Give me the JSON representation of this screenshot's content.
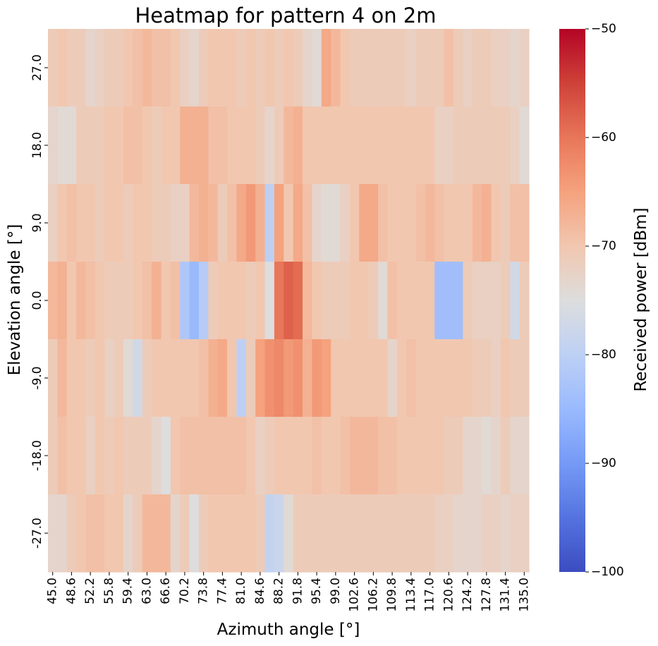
{
  "chart_data": {
    "type": "heatmap",
    "title": "Heatmap for pattern 4 on 2m",
    "xlabel": "Azimuth angle [°]",
    "ylabel": "Elevation angle [°]",
    "colorbar_label": "Received power [dBm]",
    "colormap": "coolwarm",
    "vmin": -100,
    "vmax": -50,
    "colorbar_ticks": [
      "−50",
      "−60",
      "−70",
      "−80",
      "−90",
      "−100"
    ],
    "colorbar_tick_values": [
      -50,
      -60,
      -70,
      -80,
      -90,
      -100
    ],
    "x_tick_labels": [
      "45.0",
      "48.6",
      "52.2",
      "55.8",
      "59.4",
      "63.0",
      "66.6",
      "70.2",
      "73.8",
      "77.4",
      "81.0",
      "84.6",
      "88.2",
      "91.8",
      "95.4",
      "99.0",
      "102.6",
      "106.2",
      "109.8",
      "113.4",
      "117.0",
      "120.6",
      "124.2",
      "127.8",
      "131.4",
      "135.0"
    ],
    "y_tick_labels": [
      "27.0",
      "18.0",
      "9.0",
      "0.0",
      "-9.0",
      "-18.0",
      "-27.0"
    ],
    "azimuth": [
      45.0,
      46.8,
      48.6,
      50.4,
      52.2,
      54.0,
      55.8,
      57.6,
      59.4,
      61.2,
      63.0,
      64.8,
      66.6,
      68.4,
      70.2,
      72.0,
      73.8,
      75.6,
      77.4,
      79.2,
      81.0,
      82.8,
      84.6,
      86.4,
      88.2,
      90.0,
      91.8,
      93.6,
      95.4,
      97.2,
      99.0,
      100.8,
      102.6,
      104.4,
      106.2,
      108.0,
      109.8,
      111.6,
      113.4,
      115.2,
      117.0,
      118.8,
      120.6,
      122.4,
      124.2,
      126.0,
      127.8,
      129.6,
      131.4,
      133.2,
      135.0
    ],
    "elevation": [
      27.0,
      18.0,
      9.0,
      0.0,
      -9.0,
      -18.0,
      -27.0
    ],
    "values": [
      [
        -71,
        -70,
        -71,
        -71,
        -73,
        -72,
        -71,
        -71,
        -70,
        -69,
        -68,
        -69,
        -69,
        -70,
        -72,
        -73,
        -71,
        -70,
        -70,
        -70,
        -71,
        -70,
        -71,
        -70,
        -71,
        -70,
        -71,
        -73,
        -74,
        -66,
        -68,
        -70,
        -71,
        -71,
        -71,
        -71,
        -71,
        -71,
        -72,
        -71,
        -71,
        -71,
        -69,
        -71,
        -72,
        -71,
        -71,
        -72,
        -72,
        -73,
        -72
      ],
      [
        -73,
        -74,
        -74,
        -71,
        -71,
        -71,
        -70,
        -70,
        -69,
        -69,
        -70,
        -71,
        -70,
        -70,
        -67,
        -67,
        -67,
        -69,
        -69,
        -70,
        -70,
        -70,
        -71,
        -73,
        -71,
        -68,
        -67,
        -70,
        -70,
        -70,
        -70,
        -70,
        -70,
        -70,
        -70,
        -70,
        -70,
        -70,
        -70,
        -70,
        -70,
        -72,
        -72,
        -71,
        -71,
        -71,
        -71,
        -71,
        -71,
        -72,
        -74
      ],
      [
        -72,
        -70,
        -69,
        -70,
        -70,
        -71,
        -70,
        -70,
        -71,
        -70,
        -70,
        -71,
        -71,
        -72,
        -72,
        -68,
        -67,
        -68,
        -71,
        -69,
        -66,
        -64,
        -67,
        -80,
        -65,
        -70,
        -66,
        -69,
        -73,
        -74,
        -74,
        -72,
        -70,
        -66,
        -66,
        -69,
        -70,
        -70,
        -70,
        -69,
        -68,
        -69,
        -70,
        -70,
        -70,
        -68,
        -67,
        -70,
        -71,
        -69,
        -69
      ],
      [
        -68,
        -67,
        -70,
        -68,
        -69,
        -70,
        -71,
        -71,
        -71,
        -70,
        -69,
        -67,
        -70,
        -69,
        -82,
        -85,
        -81,
        -71,
        -70,
        -70,
        -70,
        -71,
        -70,
        -75,
        -60,
        -58,
        -59,
        -68,
        -70,
        -71,
        -71,
        -71,
        -70,
        -70,
        -71,
        -74,
        -69,
        -70,
        -70,
        -70,
        -70,
        -84,
        -84,
        -84,
        -71,
        -72,
        -72,
        -72,
        -71,
        -77,
        -71
      ],
      [
        -71,
        -68,
        -70,
        -70,
        -71,
        -70,
        -72,
        -71,
        -74,
        -77,
        -71,
        -70,
        -70,
        -70,
        -70,
        -70,
        -69,
        -67,
        -66,
        -70,
        -80,
        -71,
        -65,
        -63,
        -62,
        -64,
        -63,
        -67,
        -64,
        -65,
        -70,
        -70,
        -70,
        -70,
        -70,
        -70,
        -73,
        -70,
        -69,
        -70,
        -70,
        -70,
        -70,
        -70,
        -70,
        -71,
        -71,
        -72,
        -70,
        -71,
        -71
      ],
      [
        -71,
        -69,
        -70,
        -70,
        -72,
        -70,
        -71,
        -70,
        -71,
        -71,
        -71,
        -73,
        -75,
        -70,
        -69,
        -69,
        -69,
        -69,
        -69,
        -69,
        -69,
        -70,
        -72,
        -71,
        -70,
        -70,
        -70,
        -70,
        -69,
        -70,
        -70,
        -69,
        -68,
        -68,
        -68,
        -69,
        -69,
        -70,
        -70,
        -70,
        -70,
        -70,
        -71,
        -71,
        -73,
        -73,
        -74,
        -73,
        -71,
        -73,
        -73
      ],
      [
        -73,
        -73,
        -71,
        -70,
        -69,
        -69,
        -70,
        -70,
        -73,
        -71,
        -68,
        -68,
        -68,
        -73,
        -71,
        -75,
        -71,
        -70,
        -70,
        -70,
        -70,
        -70,
        -71,
        -79,
        -78,
        -74,
        -71,
        -71,
        -71,
        -71,
        -71,
        -71,
        -71,
        -71,
        -71,
        -71,
        -71,
        -71,
        -71,
        -71,
        -71,
        -72,
        -72,
        -73,
        -73,
        -73,
        -72,
        -72,
        -73,
        -72,
        -72
      ]
    ]
  }
}
